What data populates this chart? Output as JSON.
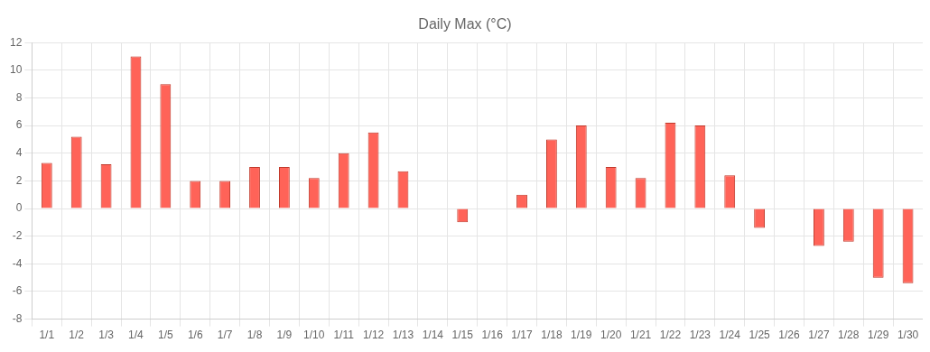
{
  "chart_data": {
    "type": "bar",
    "title": "Daily Max (°C)",
    "categories": [
      "1/1",
      "1/2",
      "1/3",
      "1/4",
      "1/5",
      "1/6",
      "1/7",
      "1/8",
      "1/9",
      "1/10",
      "1/11",
      "1/12",
      "1/13",
      "1/14",
      "1/15",
      "1/16",
      "1/17",
      "1/18",
      "1/19",
      "1/20",
      "1/21",
      "1/22",
      "1/23",
      "1/24",
      "1/25",
      "1/26",
      "1/27",
      "1/28",
      "1/29",
      "1/30"
    ],
    "values": [
      3.3,
      5.2,
      3.2,
      11,
      9,
      2,
      2,
      3,
      3,
      2.2,
      4,
      5.5,
      2.7,
      0,
      -1,
      0,
      1,
      5,
      6,
      3,
      2.2,
      6.2,
      6,
      2.4,
      -1.4,
      0,
      -2.7,
      -2.4,
      -5,
      -5.4
    ],
    "color": "#ff6358",
    "ylim": [
      -8,
      12
    ],
    "yticks": [
      -8,
      -6,
      -4,
      -2,
      0,
      2,
      4,
      6,
      8,
      10,
      12
    ],
    "grid": true,
    "legend": false
  }
}
